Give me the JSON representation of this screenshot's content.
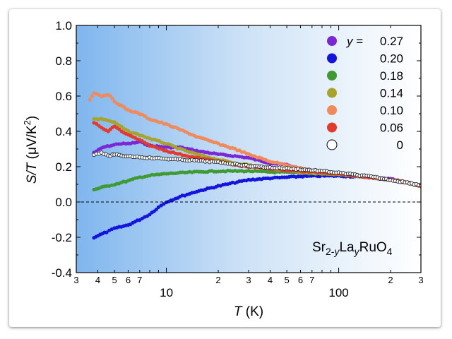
{
  "chart_data": {
    "type": "scatter",
    "xlabel": {
      "symbol": "T",
      "unit": "(K)"
    },
    "ylabel": {
      "symbol": "S/T",
      "unit_pre": "(μV/K",
      "unit_sup": "2",
      "unit_post": ")"
    },
    "x_scale": "log",
    "xlim": [
      3,
      300
    ],
    "ylim": [
      -0.4,
      1.0
    ],
    "y_ticks": [
      "-0.4",
      "-0.2",
      "0.0",
      "0.2",
      "0.4",
      "0.6",
      "0.8",
      "1.0"
    ],
    "x_major_ticks": [
      {
        "value": 10,
        "label": "10"
      },
      {
        "value": 100,
        "label": "100"
      }
    ],
    "x_minor_ticks": [
      {
        "value": 3,
        "label": "3"
      },
      {
        "value": 4,
        "label": "4"
      },
      {
        "value": 5,
        "label": "5"
      },
      {
        "value": 6,
        "label": "6"
      },
      {
        "value": 7,
        "label": "7"
      },
      {
        "value": 20,
        "label": "2"
      },
      {
        "value": 30,
        "label": "3"
      },
      {
        "value": 40,
        "label": "4"
      },
      {
        "value": 50,
        "label": "5"
      },
      {
        "value": 60,
        "label": "6"
      },
      {
        "value": 70,
        "label": "7"
      },
      {
        "value": 200,
        "label": "2"
      },
      {
        "value": 300,
        "label": "3"
      }
    ],
    "reference_line": {
      "y": 0.0,
      "style": "dashed"
    },
    "legend": {
      "placement": "top-right",
      "title_var": "y",
      "title_eq": " = "
    },
    "annotation": {
      "placement": "bottom-right",
      "parts": [
        {
          "text": "Sr",
          "style": "normal"
        },
        {
          "text": "2-",
          "style": "sub"
        },
        {
          "text": "y",
          "style": "sub-italic"
        },
        {
          "text": "La",
          "style": "normal"
        },
        {
          "text": "y",
          "style": "sub-italic"
        },
        {
          "text": "RuO",
          "style": "normal"
        },
        {
          "text": "4",
          "style": "sub"
        }
      ]
    },
    "series": [
      {
        "name": "0.27",
        "color": "#7b27d6",
        "filled": true,
        "points": [
          [
            3.8,
            0.28
          ],
          [
            4.3,
            0.31
          ],
          [
            4.8,
            0.32
          ],
          [
            5.3,
            0.33
          ],
          [
            6,
            0.33
          ],
          [
            7,
            0.34
          ],
          [
            8,
            0.32
          ],
          [
            10,
            0.31
          ],
          [
            12,
            0.31
          ],
          [
            15,
            0.29
          ],
          [
            20,
            0.27
          ],
          [
            25,
            0.26
          ],
          [
            30,
            0.25
          ],
          [
            40,
            0.22
          ],
          [
            50,
            0.21
          ],
          [
            60,
            0.19
          ],
          [
            80,
            0.17
          ],
          [
            100,
            0.16
          ],
          [
            150,
            0.14
          ],
          [
            200,
            0.13
          ],
          [
            250,
            0.11
          ],
          [
            300,
            0.09
          ]
        ]
      },
      {
        "name": "0.20",
        "color": "#1414dc",
        "filled": true,
        "points": [
          [
            3.8,
            -0.2
          ],
          [
            4.5,
            -0.17
          ],
          [
            5,
            -0.15
          ],
          [
            6,
            -0.13
          ],
          [
            7,
            -0.1
          ],
          [
            8,
            -0.07
          ],
          [
            9,
            -0.03
          ],
          [
            10,
            0.0
          ],
          [
            12,
            0.03
          ],
          [
            15,
            0.06
          ],
          [
            20,
            0.09
          ],
          [
            25,
            0.11
          ],
          [
            30,
            0.125
          ],
          [
            40,
            0.135
          ],
          [
            50,
            0.14
          ],
          [
            60,
            0.145
          ],
          [
            80,
            0.148
          ],
          [
            100,
            0.148
          ],
          [
            150,
            0.14
          ],
          [
            200,
            0.125
          ],
          [
            250,
            0.11
          ],
          [
            300,
            0.09
          ]
        ]
      },
      {
        "name": "0.18",
        "color": "#3f9a34",
        "filled": true,
        "points": [
          [
            3.8,
            0.07
          ],
          [
            4.5,
            0.09
          ],
          [
            5,
            0.1
          ],
          [
            6,
            0.12
          ],
          [
            7,
            0.14
          ],
          [
            8,
            0.15
          ],
          [
            10,
            0.16
          ],
          [
            12,
            0.165
          ],
          [
            15,
            0.17
          ],
          [
            20,
            0.175
          ],
          [
            25,
            0.175
          ],
          [
            30,
            0.175
          ],
          [
            40,
            0.17
          ],
          [
            50,
            0.168
          ],
          [
            60,
            0.165
          ],
          [
            80,
            0.16
          ],
          [
            100,
            0.155
          ],
          [
            150,
            0.14
          ],
          [
            200,
            0.125
          ],
          [
            250,
            0.11
          ],
          [
            300,
            0.09
          ]
        ]
      },
      {
        "name": "0.14",
        "color": "#a8a32e",
        "filled": true,
        "points": [
          [
            3.8,
            0.47
          ],
          [
            4.3,
            0.47
          ],
          [
            5,
            0.45
          ],
          [
            6,
            0.4
          ],
          [
            7,
            0.38
          ],
          [
            8,
            0.36
          ],
          [
            10,
            0.33
          ],
          [
            12,
            0.3
          ],
          [
            15,
            0.27
          ],
          [
            20,
            0.24
          ],
          [
            25,
            0.22
          ],
          [
            30,
            0.21
          ],
          [
            40,
            0.19
          ],
          [
            50,
            0.18
          ],
          [
            60,
            0.17
          ],
          [
            80,
            0.16
          ],
          [
            100,
            0.155
          ],
          [
            150,
            0.14
          ],
          [
            200,
            0.125
          ],
          [
            250,
            0.11
          ],
          [
            300,
            0.09
          ]
        ]
      },
      {
        "name": "0.10",
        "color": "#f08a5a",
        "filled": true,
        "points": [
          [
            3.6,
            0.58
          ],
          [
            3.8,
            0.62
          ],
          [
            4.2,
            0.6
          ],
          [
            4.6,
            0.61
          ],
          [
            5,
            0.57
          ],
          [
            6,
            0.52
          ],
          [
            7,
            0.5
          ],
          [
            8,
            0.47
          ],
          [
            10,
            0.44
          ],
          [
            12,
            0.41
          ],
          [
            15,
            0.37
          ],
          [
            20,
            0.33
          ],
          [
            25,
            0.3
          ],
          [
            30,
            0.27
          ],
          [
            40,
            0.23
          ],
          [
            50,
            0.21
          ],
          [
            60,
            0.19
          ],
          [
            80,
            0.17
          ],
          [
            100,
            0.16
          ],
          [
            150,
            0.14
          ],
          [
            200,
            0.125
          ],
          [
            250,
            0.11
          ],
          [
            300,
            0.09
          ]
        ]
      },
      {
        "name": "0.06",
        "color": "#e23a2c",
        "filled": true,
        "points": [
          [
            3.8,
            0.45
          ],
          [
            4.2,
            0.42
          ],
          [
            4.6,
            0.4
          ],
          [
            5,
            0.43
          ],
          [
            5.5,
            0.4
          ],
          [
            6,
            0.38
          ],
          [
            7,
            0.35
          ],
          [
            8,
            0.32
          ],
          [
            10,
            0.29
          ],
          [
            12,
            0.27
          ],
          [
            15,
            0.25
          ],
          [
            20,
            0.23
          ],
          [
            25,
            0.21
          ],
          [
            30,
            0.2
          ],
          [
            40,
            0.19
          ],
          [
            50,
            0.18
          ],
          [
            60,
            0.175
          ],
          [
            80,
            0.168
          ],
          [
            100,
            0.16
          ],
          [
            150,
            0.14
          ],
          [
            200,
            0.125
          ],
          [
            250,
            0.11
          ],
          [
            300,
            0.09
          ]
        ]
      },
      {
        "name": "0",
        "color": "#222222",
        "filled": false,
        "points": [
          [
            3.8,
            0.27
          ],
          [
            4.2,
            0.28
          ],
          [
            4.6,
            0.26
          ],
          [
            5,
            0.27
          ],
          [
            5.5,
            0.26
          ],
          [
            6,
            0.26
          ],
          [
            7,
            0.255
          ],
          [
            8,
            0.25
          ],
          [
            10,
            0.245
          ],
          [
            12,
            0.24
          ],
          [
            15,
            0.235
          ],
          [
            20,
            0.225
          ],
          [
            25,
            0.215
          ],
          [
            30,
            0.205
          ],
          [
            40,
            0.195
          ],
          [
            50,
            0.19
          ],
          [
            60,
            0.185
          ],
          [
            80,
            0.175
          ],
          [
            100,
            0.165
          ],
          [
            150,
            0.145
          ],
          [
            200,
            0.125
          ],
          [
            250,
            0.11
          ],
          [
            300,
            0.095
          ]
        ]
      }
    ]
  }
}
